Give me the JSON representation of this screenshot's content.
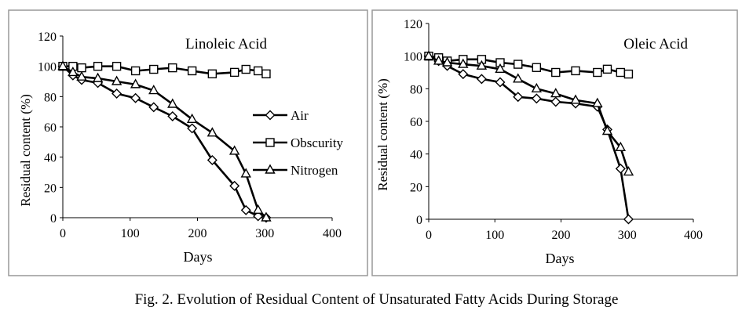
{
  "caption": "Fig. 2. Evolution of Residual Content of Unsaturated Fatty Acids During Storage",
  "chart_data": [
    {
      "type": "line",
      "title": "Linoleic Acid",
      "xlabel": "Days",
      "ylabel": "Residual content (%)",
      "xlim": [
        0,
        400
      ],
      "ylim": [
        0,
        120
      ],
      "xticks": [
        0,
        100,
        200,
        300,
        400
      ],
      "yticks": [
        0,
        20,
        40,
        60,
        80,
        100,
        120
      ],
      "grid": false,
      "legend_position": "right",
      "series": [
        {
          "name": "Air",
          "marker": "diamond",
          "x": [
            0,
            15,
            28,
            52,
            80,
            108,
            135,
            163,
            192,
            222,
            255,
            272,
            290,
            302
          ],
          "y": [
            100,
            94,
            91,
            89,
            82,
            79,
            73,
            67,
            59,
            38,
            21,
            5,
            1,
            0
          ]
        },
        {
          "name": "Obscurity",
          "marker": "square",
          "x": [
            0,
            15,
            28,
            52,
            80,
            108,
            135,
            163,
            192,
            222,
            255,
            272,
            290,
            302
          ],
          "y": [
            100,
            100,
            99,
            100,
            100,
            97,
            98,
            99,
            97,
            95,
            96,
            98,
            97,
            95
          ]
        },
        {
          "name": "Nitrogen",
          "marker": "triangle",
          "x": [
            0,
            15,
            28,
            52,
            80,
            108,
            135,
            163,
            192,
            222,
            255,
            272,
            290,
            302
          ],
          "y": [
            100,
            96,
            93,
            92,
            90,
            88,
            84,
            75,
            65,
            56,
            44,
            29,
            5,
            0
          ]
        }
      ]
    },
    {
      "type": "line",
      "title": "Oleic Acid",
      "xlabel": "Days",
      "ylabel": "Residual content (%)",
      "xlim": [
        0,
        400
      ],
      "ylim": [
        0,
        120
      ],
      "xticks": [
        0,
        100,
        200,
        300,
        400
      ],
      "yticks": [
        0,
        20,
        40,
        60,
        80,
        100,
        120
      ],
      "grid": false,
      "series": [
        {
          "name": "Air",
          "marker": "diamond",
          "x": [
            0,
            15,
            28,
            52,
            80,
            108,
            135,
            163,
            192,
            222,
            255,
            270,
            290,
            302
          ],
          "y": [
            100,
            97,
            94,
            89,
            86,
            84,
            75,
            74,
            72,
            71,
            69,
            55,
            31,
            0
          ]
        },
        {
          "name": "Obscurity",
          "marker": "square",
          "x": [
            0,
            15,
            28,
            52,
            80,
            108,
            135,
            163,
            192,
            222,
            255,
            270,
            290,
            302
          ],
          "y": [
            100,
            99,
            97,
            98,
            98,
            96,
            95,
            93,
            90,
            91,
            90,
            92,
            90,
            89
          ]
        },
        {
          "name": "Nitrogen",
          "marker": "triangle",
          "x": [
            0,
            15,
            28,
            52,
            80,
            108,
            135,
            163,
            192,
            222,
            255,
            270,
            290,
            302
          ],
          "y": [
            100,
            97,
            96,
            95,
            94,
            92,
            86,
            80,
            77,
            73,
            71,
            54,
            44,
            29
          ]
        }
      ]
    }
  ]
}
